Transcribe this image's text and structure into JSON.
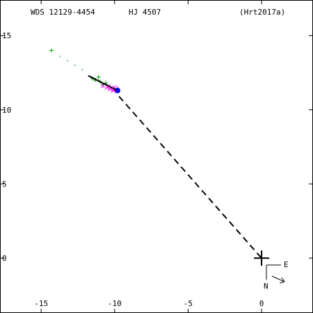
{
  "header": {
    "wds_id": "WDS 12129-4454",
    "name": "HJ 4507",
    "ref": "(Hrt2017a)"
  },
  "compass": {
    "east": "E",
    "north": "N"
  },
  "chart_data": {
    "type": "scatter",
    "title": "",
    "xlabel": "",
    "ylabel": "",
    "xlim": [
      -17.8,
      3.5
    ],
    "ylim": [
      -3.7,
      17.4
    ],
    "x_ticks": [
      -15,
      -10,
      -5,
      0
    ],
    "y_ticks": [
      15,
      10,
      5,
      0
    ],
    "colors": {
      "first_obs": "#009900",
      "orbit_dots": "#009900",
      "green_obs": "#009900",
      "magenta_obs": "#ff00ff",
      "last_obs": "#0000ff",
      "fitted_arc": "#000000",
      "to_primary": "#000000"
    },
    "series": [
      {
        "name": "",
        "kind": "first-obs",
        "points": [
          [
            -14.3,
            14.0
          ]
        ]
      },
      {
        "name": "",
        "kind": "orbit-dots",
        "points": [
          [
            -13.7,
            13.6
          ],
          [
            -13.2,
            13.3
          ],
          [
            -12.7,
            13.0
          ],
          [
            -12.2,
            12.7
          ]
        ]
      },
      {
        "name": "",
        "kind": "green-obs",
        "points": [
          [
            -11.5,
            12.1
          ],
          [
            -11.1,
            12.2
          ],
          [
            -11.0,
            11.9
          ],
          [
            -10.8,
            11.7
          ],
          [
            -10.6,
            11.8
          ],
          [
            -11.3,
            12.0
          ]
        ]
      },
      {
        "name": "",
        "kind": "magenta-obs",
        "points": [
          [
            -10.8,
            11.6
          ],
          [
            -10.5,
            11.5
          ],
          [
            -10.3,
            11.4
          ],
          [
            -10.1,
            11.3
          ],
          [
            -10.4,
            11.6
          ],
          [
            -10.0,
            11.5
          ],
          [
            -9.9,
            11.4
          ]
        ]
      },
      {
        "name": "",
        "kind": "last-obs",
        "points": [
          [
            -9.8,
            11.3
          ]
        ]
      },
      {
        "name": "",
        "kind": "fitted-arc",
        "points": [
          [
            -11.8,
            12.3
          ],
          [
            -11.2,
            12.0
          ],
          [
            -10.6,
            11.7
          ],
          [
            -10.1,
            11.45
          ],
          [
            -9.9,
            11.3
          ]
        ]
      },
      {
        "name": "",
        "kind": "to-primary",
        "points": [
          [
            -9.7,
            10.9
          ],
          [
            0.0,
            0.0
          ]
        ]
      }
    ],
    "primary": [
      0,
      0
    ],
    "grid": false
  }
}
